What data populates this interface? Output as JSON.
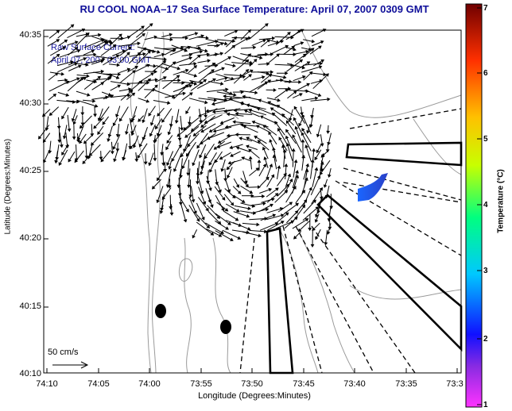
{
  "title": "RU COOL  NOAA–17  Sea Surface Temperature:  April 07, 2007 0309 GMT",
  "overlay": {
    "line1": "Raw Surface Current:",
    "line2": "April 07, 2007 03:00 GMT"
  },
  "scale_label": "50 cm/s",
  "axes": {
    "ylabel": "Latitude (Degrees:Minutes)",
    "xlabel": "Longitude (Degrees:Minutes)",
    "yticks": [
      "40:35",
      "40:30",
      "40:25",
      "40:20",
      "40:15",
      "40:10"
    ],
    "xticks": [
      "74:10",
      "74:05",
      "74:00",
      "73:55",
      "73:50",
      "73:45",
      "73:40",
      "73:35",
      "73:3"
    ]
  },
  "colorbar": {
    "label": "Temperature (°C)",
    "ticks": [
      "7",
      "6",
      "5",
      "4",
      "3",
      "2",
      "1"
    ],
    "range": [
      1,
      7
    ]
  },
  "colors": {
    "title": "#10109a",
    "overlay_text": "#1a1aa0",
    "frame": "#000000",
    "contour": "#9a9a9a",
    "arrow": "#000000",
    "highlight": "#1f5fe8"
  }
}
